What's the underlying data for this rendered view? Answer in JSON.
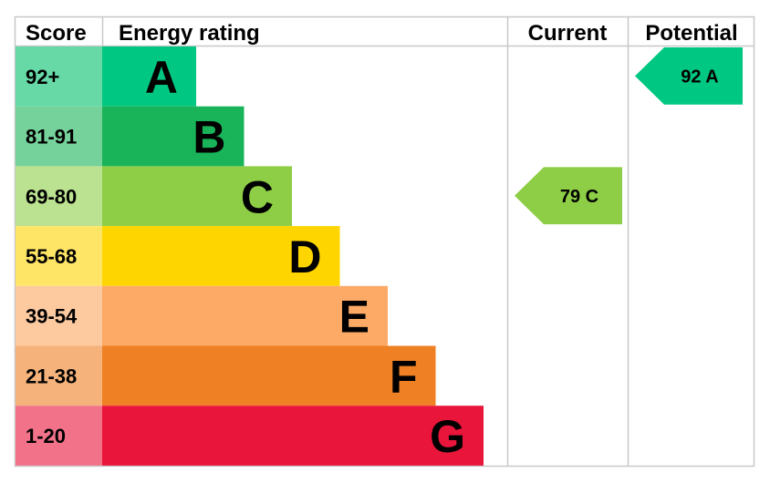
{
  "chart_data": {
    "type": "bar",
    "headers": {
      "score": "Score",
      "rating": "Energy rating",
      "current": "Current",
      "potential": "Potential"
    },
    "bands": [
      {
        "score": "92+",
        "letter": "A",
        "min": 92,
        "max": 100,
        "color": "#00c781",
        "score_bg": "#66d9a7"
      },
      {
        "score": "81-91",
        "letter": "B",
        "min": 81,
        "max": 91,
        "color": "#19b459",
        "score_bg": "#75d29b"
      },
      {
        "score": "69-80",
        "letter": "C",
        "min": 69,
        "max": 80,
        "color": "#8dce46",
        "score_bg": "#bbe290"
      },
      {
        "score": "55-68",
        "letter": "D",
        "min": 55,
        "max": 68,
        "color": "#ffd500",
        "score_bg": "#ffe566"
      },
      {
        "score": "39-54",
        "letter": "E",
        "min": 39,
        "max": 54,
        "color": "#fcaa65",
        "score_bg": "#fdcaa0"
      },
      {
        "score": "21-38",
        "letter": "F",
        "min": 21,
        "max": 38,
        "color": "#ef8023",
        "score_bg": "#f5b27b"
      },
      {
        "score": "1-20",
        "letter": "G",
        "min": 1,
        "max": 20,
        "color": "#e9153b",
        "score_bg": "#f27389"
      }
    ],
    "current": {
      "value": 79,
      "letter": "C",
      "label": "79  C",
      "color": "#8dce46"
    },
    "potential": {
      "value": 92,
      "letter": "A",
      "label": "92  A",
      "color": "#00c781"
    }
  }
}
